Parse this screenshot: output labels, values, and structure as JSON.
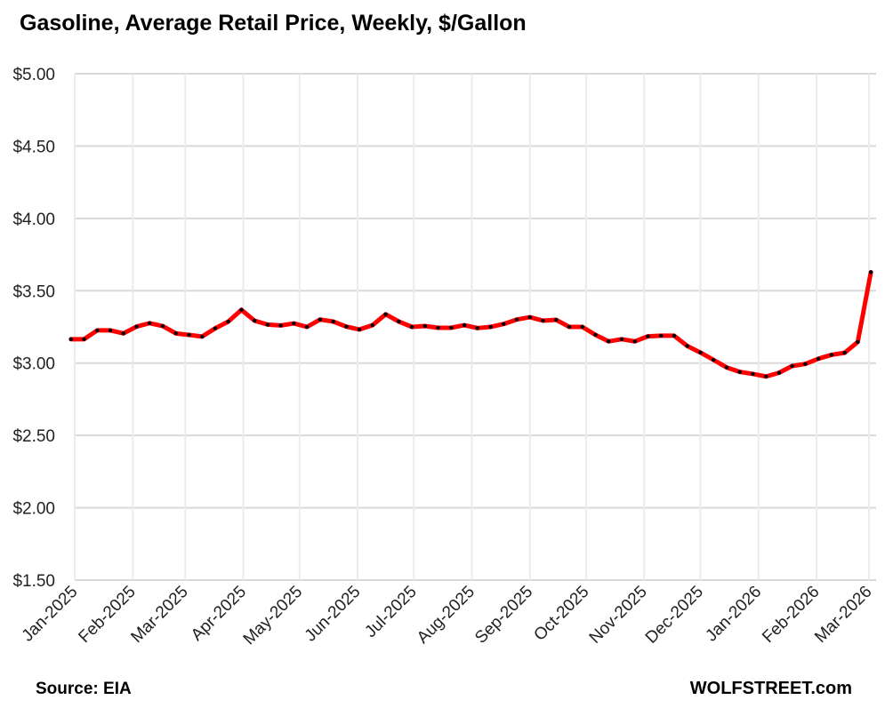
{
  "chart_data": {
    "type": "line",
    "title": "Gasoline, Average Retail Price, Weekly, $/Gallon",
    "source": "Source: EIA",
    "brand": "WOLFSTREET.com",
    "xlabel": "",
    "ylabel": "",
    "ylim": [
      1.5,
      5.0
    ],
    "y_ticks": [
      1.5,
      2.0,
      2.5,
      3.0,
      3.5,
      4.0,
      4.5,
      5.0
    ],
    "y_tick_labels": [
      "$1.50",
      "$2.00",
      "$2.50",
      "$3.00",
      "$3.50",
      "$4.00",
      "$4.50",
      "$5.00"
    ],
    "x_tick_labels": [
      "Jan-2025",
      "Feb-2025",
      "Mar-2025",
      "Apr-2025",
      "May-2025",
      "Jun-2025",
      "Jul-2025",
      "Aug-2025",
      "Sep-2025",
      "Oct-2025",
      "Nov-2025",
      "Dec-2025",
      "Jan-2026",
      "Feb-2026",
      "Mar-2026"
    ],
    "x_range": [
      "2025-01-01",
      "2026-03-01"
    ],
    "grid": true,
    "series": [
      {
        "name": "Gasoline retail price",
        "color": "#ff0000",
        "marker_color": "#000000",
        "start_date": "2024-12-30",
        "interval_days": 7,
        "values": [
          3.165,
          3.165,
          3.226,
          3.226,
          3.205,
          3.252,
          3.276,
          3.256,
          3.205,
          3.195,
          3.183,
          3.24,
          3.287,
          3.368,
          3.293,
          3.266,
          3.26,
          3.274,
          3.25,
          3.301,
          3.287,
          3.252,
          3.232,
          3.262,
          3.337,
          3.287,
          3.25,
          3.256,
          3.244,
          3.244,
          3.262,
          3.242,
          3.25,
          3.27,
          3.301,
          3.317,
          3.293,
          3.299,
          3.25,
          3.25,
          3.195,
          3.15,
          3.165,
          3.15,
          3.185,
          3.189,
          3.189,
          3.118,
          3.073,
          3.022,
          2.97,
          2.939,
          2.925,
          2.907,
          2.933,
          2.98,
          2.994,
          3.03,
          3.057,
          3.071,
          3.146,
          3.628
        ]
      }
    ]
  }
}
